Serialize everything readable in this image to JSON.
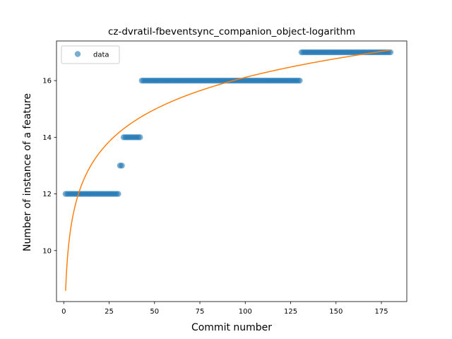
{
  "chart_data": {
    "type": "scatter",
    "title": "cz-dvratil-fbeventsync_companion_object-logarithm",
    "xlabel": "Commit number",
    "ylabel": "Number of instance of a feature",
    "xlim": [
      -4,
      189
    ],
    "ylim": [
      8.2,
      17.4
    ],
    "xticks": [
      0,
      25,
      50,
      75,
      100,
      125,
      150,
      175
    ],
    "yticks": [
      10,
      12,
      14,
      16
    ],
    "grid": false,
    "legend": {
      "location": "upper-left"
    },
    "series": [
      {
        "name": "data",
        "kind": "points",
        "color": "#1f77b4",
        "segments": [
          {
            "x_start": 1,
            "x_end": 30,
            "y": 12
          },
          {
            "x_start": 31,
            "x_end": 32,
            "y": 13
          },
          {
            "x_start": 33,
            "x_end": 42,
            "y": 14
          },
          {
            "x_start": 43,
            "x_end": 130,
            "y": 16
          },
          {
            "x_start": 131,
            "x_end": 180,
            "y": 17
          }
        ]
      },
      {
        "kind": "line",
        "color": "#ff7f0e",
        "model": "y = a + b*ln(x)",
        "a": 8.58,
        "b": 1.636,
        "x_range": [
          1,
          180
        ]
      }
    ]
  }
}
